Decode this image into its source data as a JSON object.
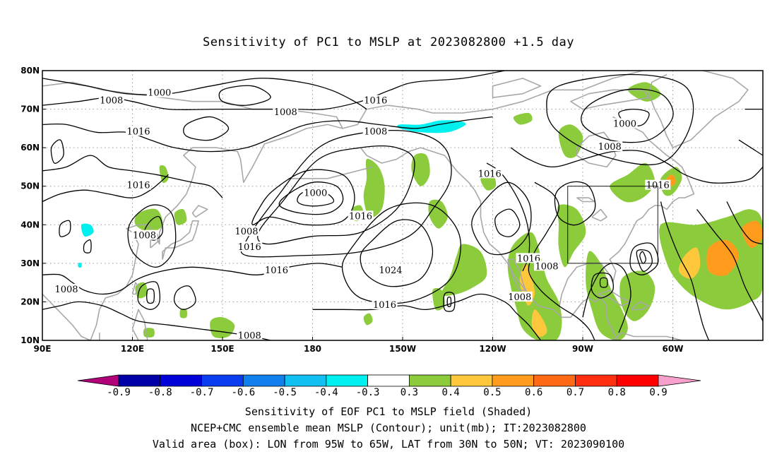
{
  "title": "Sensitivity of PC1 to MSLP at 2023082800 +1.5 day",
  "map": {
    "lon_ticks": [
      "90E",
      "120E",
      "150E",
      "180",
      "150W",
      "120W",
      "90W",
      "60W"
    ],
    "lat_ticks": [
      "10N",
      "20N",
      "30N",
      "40N",
      "50N",
      "60N",
      "70N",
      "80N"
    ],
    "contour_labels": [
      {
        "text": "1000",
        "lon": 129,
        "lat": 74
      },
      {
        "text": "1008",
        "lon": 113,
        "lat": 72
      },
      {
        "text": "1008",
        "lon": 171,
        "lat": 69
      },
      {
        "text": "1016",
        "lon": 201,
        "lat": 72
      },
      {
        "text": "1016",
        "lon": 122,
        "lat": 64
      },
      {
        "text": "1008",
        "lon": 201,
        "lat": 64
      },
      {
        "text": "1016",
        "lon": 239,
        "lat": 53
      },
      {
        "text": "1008",
        "lon": 279,
        "lat": 60
      },
      {
        "text": "1000",
        "lon": 284,
        "lat": 66
      },
      {
        "text": "1016",
        "lon": 295,
        "lat": 50
      },
      {
        "text": "1016",
        "lon": 122,
        "lat": 50
      },
      {
        "text": "1000",
        "lon": 181,
        "lat": 48
      },
      {
        "text": "1016",
        "lon": 196,
        "lat": 42
      },
      {
        "text": "1008",
        "lon": 124,
        "lat": 37
      },
      {
        "text": "1008",
        "lon": 158,
        "lat": 38
      },
      {
        "text": "1016",
        "lon": 159,
        "lat": 34
      },
      {
        "text": "1016",
        "lon": 168,
        "lat": 28
      },
      {
        "text": "1024",
        "lon": 206,
        "lat": 28
      },
      {
        "text": "1016",
        "lon": 252,
        "lat": 31
      },
      {
        "text": "1008",
        "lon": 258,
        "lat": 29
      },
      {
        "text": "1008",
        "lon": 98,
        "lat": 23
      },
      {
        "text": "1016",
        "lon": 204,
        "lat": 19
      },
      {
        "text": "1008",
        "lon": 249,
        "lat": 21
      },
      {
        "text": "1008",
        "lon": 159,
        "lat": 11
      }
    ],
    "valid_box": {
      "lon_min": 265,
      "lon_max": 295,
      "lat_min": 30,
      "lat_max": 50
    }
  },
  "colorbar": {
    "labels": [
      "-0.9",
      "-0.8",
      "-0.7",
      "-0.6",
      "-0.5",
      "-0.4",
      "-0.3",
      "0.3",
      "0.4",
      "0.5",
      "0.6",
      "0.7",
      "0.8",
      "0.9"
    ],
    "colors": [
      "#b0007a",
      "#0000a8",
      "#0000d8",
      "#0a3cf0",
      "#0f80ee",
      "#10c0f0",
      "#00f0f0",
      "#ffffff",
      "#8ccc3c",
      "#ffc83c",
      "#ff9c1e",
      "#ff6a14",
      "#ff3010",
      "#ff0000",
      "#f8a0cc"
    ]
  },
  "captions": [
    "Sensitivity of EOF PC1 to MSLP field (Shaded)",
    "NCEP+CMC ensemble mean MSLP (Contour); unit(mb); IT:2023082800",
    "Valid area (box): LON from 95W to 65W, LAT from 30N to 50N; VT: 2023090100"
  ],
  "colors": {
    "coast": "#a8a8a8",
    "contour": "#000000",
    "grid": "#9a9a9a"
  }
}
